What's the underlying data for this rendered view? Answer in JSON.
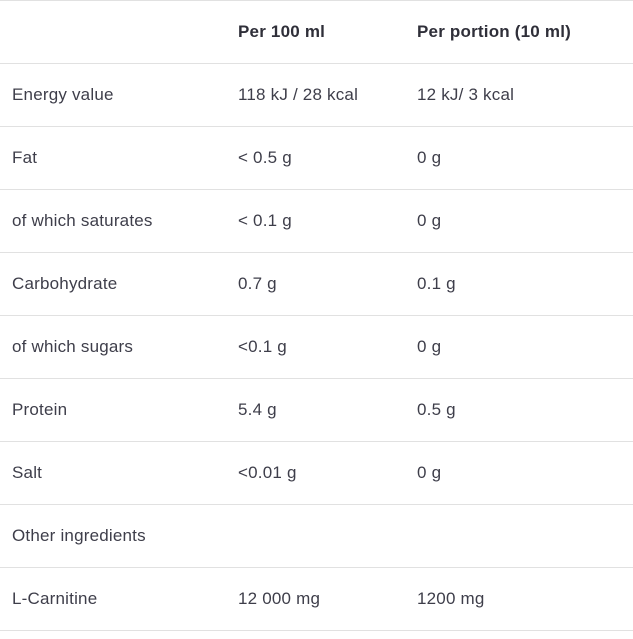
{
  "table": {
    "columns": {
      "label": "",
      "per100": "Per 100 ml",
      "portion": "Per portion (10 ml)"
    },
    "rows": [
      {
        "label": "Energy value",
        "per100": "118 kJ / 28 kcal",
        "portion": "12 kJ/ 3 kcal"
      },
      {
        "label": "Fat",
        "per100": "< 0.5 g",
        "portion": "0 g"
      },
      {
        "label": "of which saturates",
        "per100": "< 0.1 g",
        "portion": "0 g"
      },
      {
        "label": "Carbohydrate",
        "per100": "0.7 g",
        "portion": "0.1 g"
      },
      {
        "label": "of which sugars",
        "per100": "<0.1 g",
        "portion": "0 g"
      },
      {
        "label": "Protein",
        "per100": "5.4 g",
        "portion": "0.5 g"
      },
      {
        "label": "Salt",
        "per100": "<0.01 g",
        "portion": "0 g"
      },
      {
        "label": "Other ingredients",
        "per100": "",
        "portion": ""
      },
      {
        "label": "L-Carnitine",
        "per100": "12 000 mg",
        "portion": "1200 mg"
      }
    ],
    "colors": {
      "text": "#3e3e4a",
      "header_text": "#2f2f39",
      "divider": "#e1e1e1",
      "background": "#ffffff"
    }
  }
}
